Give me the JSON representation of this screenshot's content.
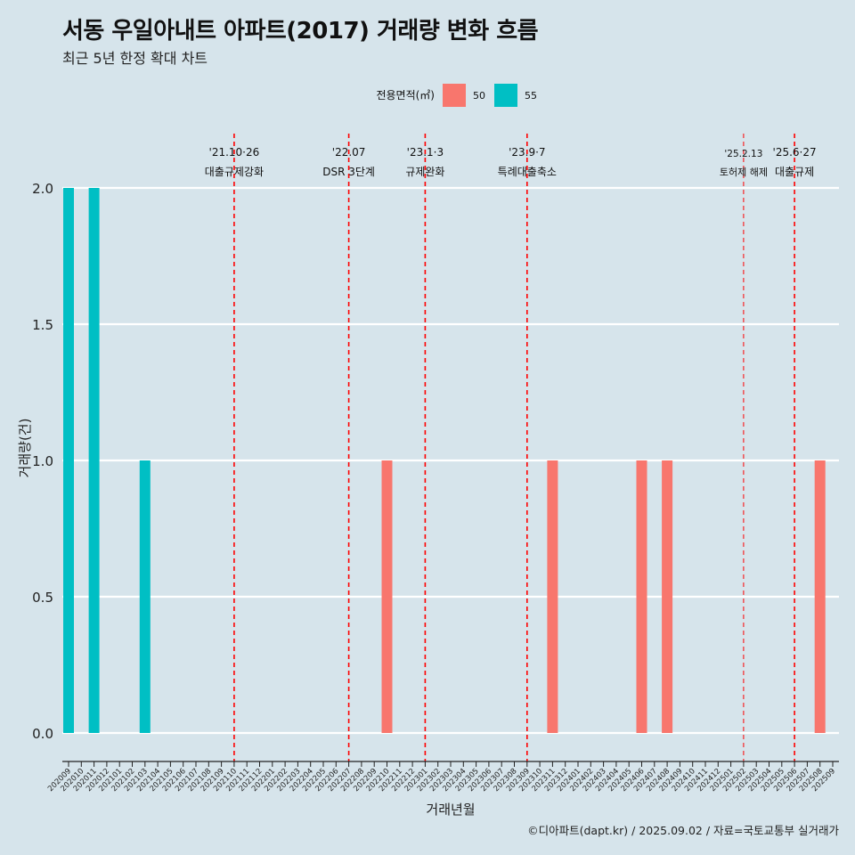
{
  "chart_data": {
    "type": "bar",
    "title": "서동 우일아내트 아파트(2017) 거래량 변화 흐름",
    "subtitle": "최근 5년 한정 확대 차트",
    "xlabel": "거래년월",
    "ylabel": "거래량(건)",
    "ylim": [
      0,
      2
    ],
    "y_ticks": [
      "0.0",
      "0.5",
      "1.0",
      "1.5",
      "2.0"
    ],
    "grid": true,
    "legend": {
      "title": "전용면적(㎡)",
      "placement": "top",
      "items": [
        {
          "name": "50",
          "color": "#f8766d"
        },
        {
          "name": "55",
          "color": "#00bfc4"
        }
      ]
    },
    "categories": [
      "202009",
      "202010",
      "202011",
      "202012",
      "202101",
      "202102",
      "202103",
      "202104",
      "202105",
      "202106",
      "202107",
      "202108",
      "202109",
      "202110",
      "202111",
      "202112",
      "202201",
      "202202",
      "202203",
      "202204",
      "202205",
      "202206",
      "202207",
      "202208",
      "202209",
      "202210",
      "202211",
      "202212",
      "202301",
      "202302",
      "202303",
      "202304",
      "202305",
      "202306",
      "202307",
      "202308",
      "202309",
      "202310",
      "202311",
      "202312",
      "202401",
      "202402",
      "202403",
      "202404",
      "202405",
      "202406",
      "202407",
      "202408",
      "202409",
      "202410",
      "202411",
      "202412",
      "202501",
      "202502",
      "202503",
      "202504",
      "202505",
      "202506",
      "202507",
      "202508",
      "202509"
    ],
    "series": [
      {
        "name": "50",
        "color": "#f8766d",
        "values": [
          0,
          0,
          0,
          0,
          0,
          0,
          0,
          0,
          0,
          0,
          0,
          0,
          0,
          0,
          0,
          0,
          0,
          0,
          0,
          0,
          0,
          0,
          0,
          0,
          0,
          1,
          0,
          0,
          0,
          0,
          0,
          0,
          0,
          0,
          0,
          0,
          0,
          0,
          1,
          0,
          0,
          0,
          0,
          0,
          0,
          1,
          0,
          1,
          0,
          0,
          0,
          0,
          0,
          0,
          0,
          0,
          0,
          0,
          0,
          1,
          0
        ]
      },
      {
        "name": "55",
        "color": "#00bfc4",
        "values": [
          2,
          0,
          2,
          0,
          0,
          0,
          1,
          0,
          0,
          0,
          0,
          0,
          0,
          0,
          0,
          0,
          0,
          0,
          0,
          0,
          0,
          0,
          0,
          0,
          0,
          0,
          0,
          0,
          0,
          0,
          0,
          0,
          0,
          0,
          0,
          0,
          0,
          0,
          0,
          0,
          0,
          0,
          0,
          0,
          0,
          0,
          0,
          0,
          0,
          0,
          0,
          0,
          0,
          0,
          0,
          0,
          0,
          0,
          0,
          0,
          0
        ]
      }
    ],
    "annotations": [
      {
        "category": "202110",
        "date": "'21.10·26",
        "label": "대출규제강화",
        "style": "bold"
      },
      {
        "category": "202207",
        "date": "'22.07",
        "label": "DSR 3단계",
        "style": "bold"
      },
      {
        "category": "202301",
        "date": "'23.1·3",
        "label": "규제완화",
        "style": "bold"
      },
      {
        "category": "202309",
        "date": "'23.9·7",
        "label": "특례대출축소",
        "style": "bold"
      },
      {
        "category": "202502",
        "date": "'25.2.13",
        "label": "토허제 해제",
        "style": "thin"
      },
      {
        "category": "202506",
        "date": "'25.6·27",
        "label": "대출규제",
        "style": "bold"
      }
    ],
    "annotation_color": "#ff0000"
  },
  "caption": "©디아파트(dapt.kr) / 2025.09.02 / 자료=국토교통부 실거래가"
}
